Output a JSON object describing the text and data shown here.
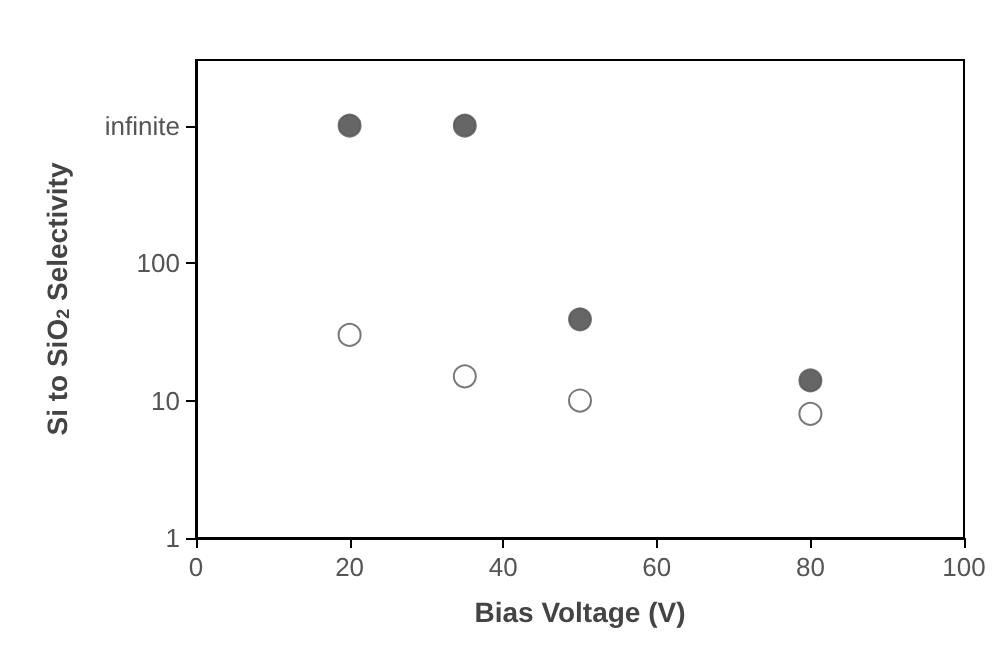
{
  "chart_data": {
    "type": "scatter",
    "xlabel": "Bias Voltage (V)",
    "ylabel": "Si to SiO$_{2}$ Selectivity",
    "x": [
      20,
      35,
      50,
      80
    ],
    "series": [
      {
        "color": "#404040",
        "values": [
          1000,
          1000,
          39,
          14
        ]
      },
      {
        "color": "#ffffff",
        "values": [
          30,
          15,
          10,
          8
        ]
      }
    ],
    "xlim": [
      0,
      100
    ],
    "xticks": [
      0,
      20,
      40,
      60,
      80,
      100
    ],
    "ylim": [
      1,
      3000
    ],
    "yticks": [
      1,
      10,
      100,
      {
        "value": 1000,
        "label": "infinite"
      }
    ],
    "log": "y",
    "grid": false,
    "marker": "circle"
  }
}
